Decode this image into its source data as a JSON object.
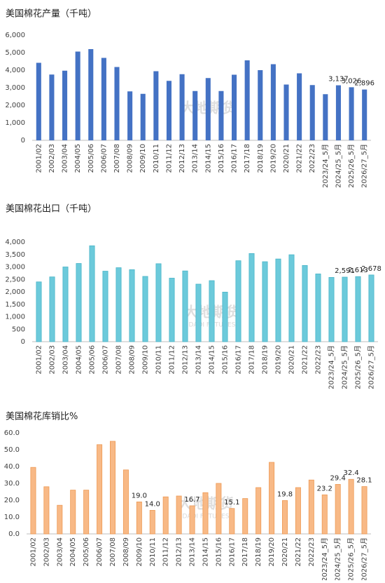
{
  "chart_data": [
    {
      "type": "bar",
      "title": "美国棉花产量（千吨）",
      "categories": [
        "2001/02",
        "2002/03",
        "2003/04",
        "2004/05",
        "2005/06",
        "2006/07",
        "2007/08",
        "2008/09",
        "2009/10",
        "2010/11",
        "2011/12",
        "2012/13",
        "2013/14",
        "2014/15",
        "2015/16",
        "2016/17",
        "2017/18",
        "2018/19",
        "2019/20",
        "2020/21",
        "2021/22",
        "2022/23",
        "2023/24_5月",
        "2024/25_5月",
        "2025/26_5月",
        "2026/27_5月"
      ],
      "values": [
        4420,
        3750,
        3970,
        5060,
        5200,
        4700,
        4180,
        2790,
        2650,
        3940,
        3390,
        3770,
        2810,
        3550,
        2810,
        3740,
        4560,
        4000,
        4340,
        3180,
        3820,
        3150,
        2630,
        3137,
        3026,
        2896
      ],
      "value_labels": [
        null,
        null,
        null,
        null,
        null,
        null,
        null,
        null,
        null,
        null,
        null,
        null,
        null,
        null,
        null,
        null,
        null,
        null,
        null,
        null,
        null,
        null,
        null,
        "3,137",
        "3,026",
        "2,896"
      ],
      "color": "#4472c4",
      "ylim": [
        0,
        6000
      ],
      "yticks": [
        0,
        {
          "value": 1000,
          "label": "1,000"
        },
        {
          "value": 2000,
          "label": "2,000"
        },
        {
          "value": 3000,
          "label": "3,000"
        },
        {
          "value": 4000,
          "label": "4,000"
        },
        {
          "value": 5000,
          "label": "5,000"
        },
        {
          "value": 6000,
          "label": "6,000"
        }
      ],
      "grid": false,
      "watermark": "大地期货"
    },
    {
      "type": "bar",
      "title": "美国棉花出口（千吨）",
      "categories": [
        "2001/02",
        "2002/03",
        "2003/04",
        "2004/05",
        "2005/06",
        "2006/07",
        "2007/08",
        "2008/09",
        "2009/10",
        "2010/11",
        "2011/12",
        "2012/13",
        "2013/14",
        "2014/15",
        "2015/16",
        "2016/17",
        "2017/18",
        "2018/19",
        "2019/20",
        "2020/21",
        "2021/22",
        "2022/23",
        "2023/24_5月",
        "2024/25_5月",
        "2025/26_5月",
        "2026/27_5月"
      ],
      "values": [
        2400,
        2600,
        3000,
        3140,
        3850,
        2830,
        2970,
        2890,
        2620,
        3130,
        2550,
        2840,
        2310,
        2450,
        1990,
        3250,
        3540,
        3210,
        3320,
        3490,
        3060,
        2720,
        2580,
        2591,
        2613,
        2678
      ],
      "value_labels": [
        null,
        null,
        null,
        null,
        null,
        null,
        null,
        null,
        null,
        null,
        null,
        null,
        null,
        null,
        null,
        null,
        null,
        null,
        null,
        null,
        null,
        null,
        null,
        "2,591",
        "2,613",
        "2,678"
      ],
      "color": "#6ccadb",
      "ylim": [
        0,
        4000
      ],
      "yticks": [
        0,
        500,
        {
          "value": 1000,
          "label": "1,000"
        },
        {
          "value": 1500,
          "label": "1,500"
        },
        {
          "value": 2000,
          "label": "2,000"
        },
        {
          "value": 2500,
          "label": "2,500"
        },
        {
          "value": 3000,
          "label": "3,000"
        },
        {
          "value": 3500,
          "label": "3,500"
        },
        {
          "value": 4000,
          "label": "4,000"
        }
      ],
      "grid": false,
      "watermark": "大地期货",
      "watermark_sub": "DADI FUTURES"
    },
    {
      "type": "bar",
      "title": "美国棉花库销比%",
      "categories": [
        "2001/02",
        "2002/03",
        "2003/04",
        "2004/05",
        "2005/06",
        "2006/07",
        "2007/08",
        "2008/09",
        "2009/10",
        "2010/11",
        "2011/12",
        "2012/13",
        "2013/14",
        "2014/15",
        "2015/16",
        "2016/17",
        "2017/18",
        "2018/19",
        "2019/20",
        "2020/21",
        "2021/22",
        "2022/23",
        "2023/24_5月",
        "2024/25_5月",
        "2025/26_5月",
        "2026/27_5月"
      ],
      "values": [
        39.5,
        28,
        17,
        26,
        26,
        53,
        55,
        38,
        19.0,
        14.0,
        22,
        22.5,
        16.7,
        24.5,
        30,
        15.1,
        21,
        27.5,
        42.5,
        19.8,
        27.5,
        32,
        23.2,
        29.4,
        32.4,
        28.1
      ],
      "value_labels": [
        null,
        null,
        null,
        null,
        null,
        null,
        null,
        null,
        "19.0",
        "14.0",
        null,
        null,
        "16.7",
        null,
        null,
        "15.1",
        null,
        null,
        null,
        "19.8",
        null,
        null,
        "23.2",
        "29.4",
        "32.4",
        "28.1"
      ],
      "color": "#f8b986",
      "ylim": [
        0,
        60
      ],
      "yticks": [
        {
          "value": 0,
          "label": "0.0"
        },
        {
          "value": 10,
          "label": "10.0"
        },
        {
          "value": 20,
          "label": "20.0"
        },
        {
          "value": 30,
          "label": "30.0"
        },
        {
          "value": 40,
          "label": "40.0"
        },
        {
          "value": 50,
          "label": "50.0"
        },
        {
          "value": 60,
          "label": "60.0"
        }
      ],
      "grid": false,
      "watermark": "大地期货",
      "watermark_sub": "DADI FUTURES"
    }
  ]
}
